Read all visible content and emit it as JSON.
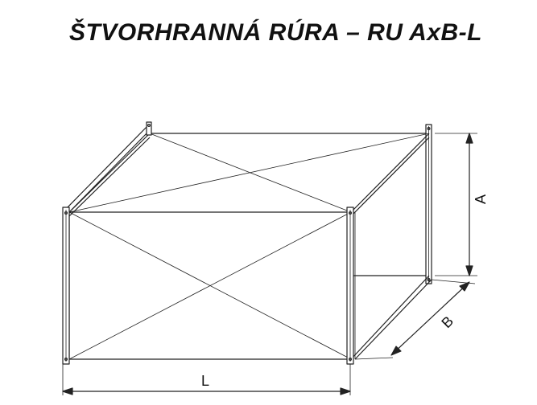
{
  "title": "ŠTVORHRANNÁ RÚRA – RU AxB-L",
  "dimensions": {
    "a": "A",
    "b": "B",
    "l": "L"
  },
  "colors": {
    "line": "#222222",
    "background": "#ffffff"
  }
}
